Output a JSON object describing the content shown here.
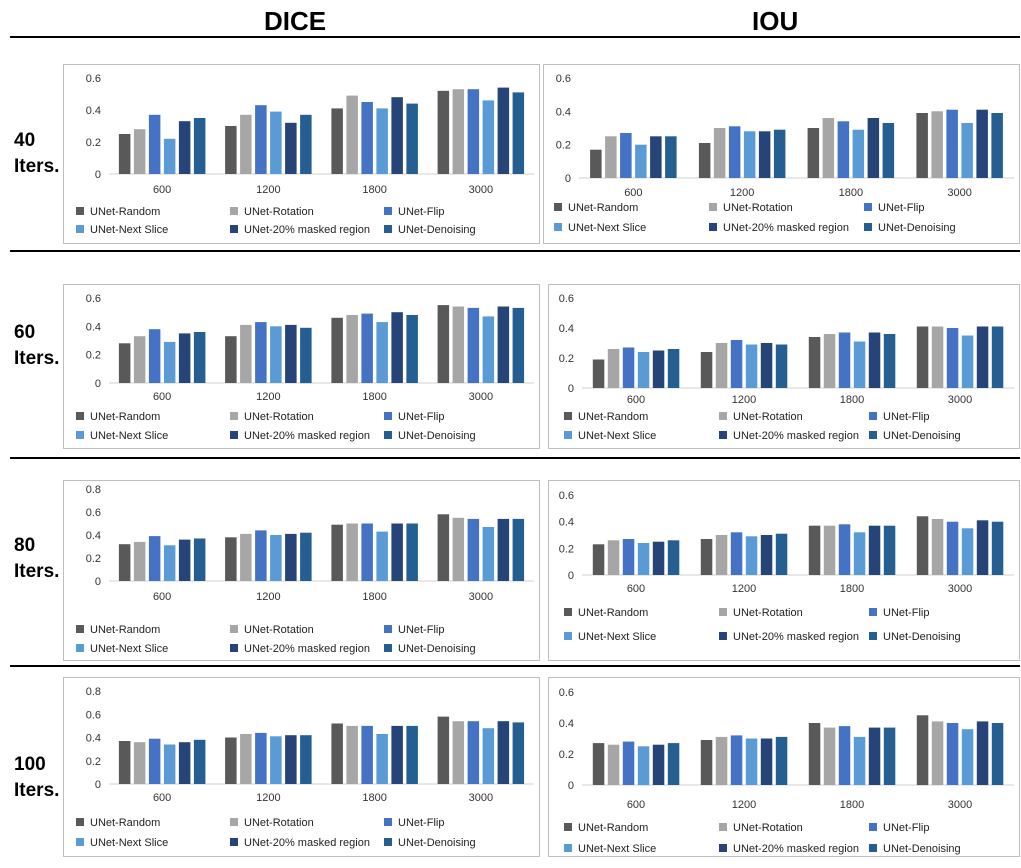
{
  "column_titles": [
    "DICE",
    "IOU"
  ],
  "row_labels": [
    [
      "40",
      "Iters."
    ],
    [
      "60",
      "Iters."
    ],
    [
      "80",
      "Iters."
    ],
    [
      "100",
      "Iters."
    ]
  ],
  "colors": [
    "#595959",
    "#a6a6a6",
    "#4472c4",
    "#5b9bd5",
    "#264478",
    "#255e91"
  ],
  "chart_data": [
    {
      "panel": "DICE 40 Iters.",
      "type": "bar",
      "categories": [
        "600",
        "1200",
        "1800",
        "3000"
      ],
      "ylim": [
        0,
        0.6
      ],
      "yticks": [
        "0",
        "0.2",
        "0.4",
        "0.6"
      ],
      "series": [
        {
          "name": "UNet-Random",
          "values": [
            0.25,
            0.3,
            0.41,
            0.52
          ]
        },
        {
          "name": "UNet-Rotation",
          "values": [
            0.28,
            0.37,
            0.49,
            0.53
          ]
        },
        {
          "name": "UNet-Flip",
          "values": [
            0.37,
            0.43,
            0.45,
            0.53
          ]
        },
        {
          "name": "UNet-Next Slice",
          "values": [
            0.22,
            0.39,
            0.41,
            0.46
          ]
        },
        {
          "name": "UNet-20% masked region",
          "values": [
            0.33,
            0.32,
            0.48,
            0.54
          ]
        },
        {
          "name": "UNet-Denoising",
          "values": [
            0.35,
            0.37,
            0.44,
            0.51
          ]
        }
      ]
    },
    {
      "panel": "IOU 40 Iters.",
      "type": "bar",
      "categories": [
        "600",
        "1200",
        "1800",
        "3000"
      ],
      "ylim": [
        0,
        0.6
      ],
      "yticks": [
        "0",
        "0.2",
        "0.4",
        "0.6"
      ],
      "series": [
        {
          "name": "UNet-Random",
          "values": [
            0.17,
            0.21,
            0.3,
            0.39
          ]
        },
        {
          "name": "UNet-Rotation",
          "values": [
            0.25,
            0.3,
            0.36,
            0.4
          ]
        },
        {
          "name": "UNet-Flip",
          "values": [
            0.27,
            0.31,
            0.34,
            0.41
          ]
        },
        {
          "name": "UNet-Next Slice",
          "values": [
            0.2,
            0.28,
            0.29,
            0.33
          ]
        },
        {
          "name": "UNet-20% masked region",
          "values": [
            0.25,
            0.28,
            0.36,
            0.41
          ]
        },
        {
          "name": "UNet-Denoising",
          "values": [
            0.25,
            0.29,
            0.33,
            0.39
          ]
        }
      ]
    },
    {
      "panel": "DICE 60 Iters.",
      "type": "bar",
      "categories": [
        "600",
        "1200",
        "1800",
        "3000"
      ],
      "ylim": [
        0,
        0.6
      ],
      "yticks": [
        "0",
        "0.2",
        "0.4",
        "0.6"
      ],
      "series": [
        {
          "name": "UNet-Random",
          "values": [
            0.28,
            0.33,
            0.46,
            0.55
          ]
        },
        {
          "name": "UNet-Rotation",
          "values": [
            0.33,
            0.41,
            0.48,
            0.54
          ]
        },
        {
          "name": "UNet-Flip",
          "values": [
            0.38,
            0.43,
            0.49,
            0.53
          ]
        },
        {
          "name": "UNet-Next Slice",
          "values": [
            0.29,
            0.4,
            0.43,
            0.47
          ]
        },
        {
          "name": "UNet-20% masked region",
          "values": [
            0.35,
            0.41,
            0.5,
            0.54
          ]
        },
        {
          "name": "UNet-Denoising",
          "values": [
            0.36,
            0.39,
            0.48,
            0.53
          ]
        }
      ]
    },
    {
      "panel": "IOU 60 Iters.",
      "type": "bar",
      "categories": [
        "600",
        "1200",
        "1800",
        "3000"
      ],
      "ylim": [
        0,
        0.6
      ],
      "yticks": [
        "0",
        "0.2",
        "0.4",
        "0.6"
      ],
      "series": [
        {
          "name": "UNet-Random",
          "values": [
            0.19,
            0.24,
            0.34,
            0.41
          ]
        },
        {
          "name": "UNet-Rotation",
          "values": [
            0.26,
            0.3,
            0.36,
            0.41
          ]
        },
        {
          "name": "UNet-Flip",
          "values": [
            0.27,
            0.32,
            0.37,
            0.4
          ]
        },
        {
          "name": "UNet-Next Slice",
          "values": [
            0.24,
            0.29,
            0.31,
            0.35
          ]
        },
        {
          "name": "UNet-20% masked region",
          "values": [
            0.25,
            0.3,
            0.37,
            0.41
          ]
        },
        {
          "name": "UNet-Denoising",
          "values": [
            0.26,
            0.29,
            0.36,
            0.41
          ]
        }
      ]
    },
    {
      "panel": "DICE 80 Iters.",
      "type": "bar",
      "categories": [
        "600",
        "1200",
        "1800",
        "3000"
      ],
      "ylim": [
        0,
        0.8
      ],
      "yticks": [
        "0",
        "0.2",
        "0.4",
        "0.6",
        "0.8"
      ],
      "series": [
        {
          "name": "UNet-Random",
          "values": [
            0.32,
            0.38,
            0.49,
            0.58
          ]
        },
        {
          "name": "UNet-Rotation",
          "values": [
            0.34,
            0.41,
            0.5,
            0.55
          ]
        },
        {
          "name": "UNet-Flip",
          "values": [
            0.39,
            0.44,
            0.5,
            0.54
          ]
        },
        {
          "name": "UNet-Next Slice",
          "values": [
            0.31,
            0.4,
            0.43,
            0.47
          ]
        },
        {
          "name": "UNet-20% masked region",
          "values": [
            0.36,
            0.41,
            0.5,
            0.54
          ]
        },
        {
          "name": "UNet-Denoising",
          "values": [
            0.37,
            0.42,
            0.5,
            0.54
          ]
        }
      ]
    },
    {
      "panel": "IOU 80 Iters.",
      "type": "bar",
      "categories": [
        "600",
        "1200",
        "1800",
        "3000"
      ],
      "ylim": [
        0,
        0.6
      ],
      "yticks": [
        "0",
        "0.2",
        "0.4",
        "0.6"
      ],
      "series": [
        {
          "name": "UNet-Random",
          "values": [
            0.23,
            0.27,
            0.37,
            0.44
          ]
        },
        {
          "name": "UNet-Rotation",
          "values": [
            0.26,
            0.3,
            0.37,
            0.42
          ]
        },
        {
          "name": "UNet-Flip",
          "values": [
            0.27,
            0.32,
            0.38,
            0.4
          ]
        },
        {
          "name": "UNet-Next Slice",
          "values": [
            0.24,
            0.29,
            0.32,
            0.35
          ]
        },
        {
          "name": "UNet-20% masked region",
          "values": [
            0.25,
            0.3,
            0.37,
            0.41
          ]
        },
        {
          "name": "UNet-Denoising",
          "values": [
            0.26,
            0.31,
            0.37,
            0.4
          ]
        }
      ]
    },
    {
      "panel": "DICE 100 Iters.",
      "type": "bar",
      "categories": [
        "600",
        "1200",
        "1800",
        "3000"
      ],
      "ylim": [
        0,
        0.8
      ],
      "yticks": [
        "0",
        "0.2",
        "0.4",
        "0.6",
        "0.8"
      ],
      "series": [
        {
          "name": "UNet-Random",
          "values": [
            0.37,
            0.4,
            0.52,
            0.58
          ]
        },
        {
          "name": "UNet-Rotation",
          "values": [
            0.36,
            0.43,
            0.5,
            0.54
          ]
        },
        {
          "name": "UNet-Flip",
          "values": [
            0.39,
            0.44,
            0.5,
            0.54
          ]
        },
        {
          "name": "UNet-Next Slice",
          "values": [
            0.34,
            0.41,
            0.43,
            0.48
          ]
        },
        {
          "name": "UNet-20% masked region",
          "values": [
            0.36,
            0.42,
            0.5,
            0.54
          ]
        },
        {
          "name": "UNet-Denoising",
          "values": [
            0.38,
            0.42,
            0.5,
            0.53
          ]
        }
      ]
    },
    {
      "panel": "IOU 100 Iters.",
      "type": "bar",
      "categories": [
        "600",
        "1200",
        "1800",
        "3000"
      ],
      "ylim": [
        0,
        0.6
      ],
      "yticks": [
        "0",
        "0.2",
        "0.4",
        "0.6"
      ],
      "series": [
        {
          "name": "UNet-Random",
          "values": [
            0.27,
            0.29,
            0.4,
            0.45
          ]
        },
        {
          "name": "UNet-Rotation",
          "values": [
            0.26,
            0.31,
            0.37,
            0.41
          ]
        },
        {
          "name": "UNet-Flip",
          "values": [
            0.28,
            0.32,
            0.38,
            0.4
          ]
        },
        {
          "name": "UNet-Next Slice",
          "values": [
            0.25,
            0.3,
            0.31,
            0.36
          ]
        },
        {
          "name": "UNet-20% masked region",
          "values": [
            0.26,
            0.3,
            0.37,
            0.41
          ]
        },
        {
          "name": "UNet-Denoising",
          "values": [
            0.27,
            0.31,
            0.37,
            0.4
          ]
        }
      ]
    }
  ]
}
